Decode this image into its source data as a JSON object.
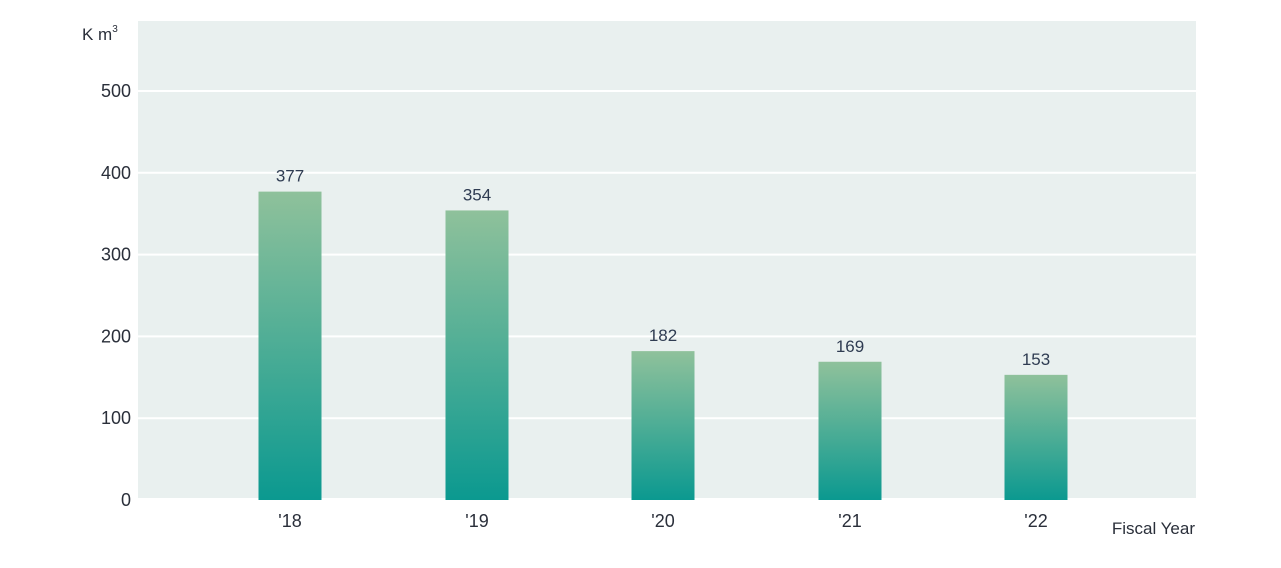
{
  "chart_data": {
    "type": "bar",
    "categories": [
      "'18",
      "'19",
      "'20",
      "'21",
      "'22"
    ],
    "values": [
      377,
      354,
      182,
      169,
      153
    ],
    "ylabel": "K m",
    "ylabel_superscript": "3",
    "xlabel": "Fiscal Year",
    "ylim": [
      0,
      520
    ],
    "yticks": [
      0,
      100,
      200,
      300,
      400,
      500
    ],
    "grid": true,
    "legend": "none"
  },
  "colors": {
    "plot_background": "#e9f0ef",
    "gridline": "#ffffff",
    "bar_top": "#8fc19b",
    "bar_bottom": "#0b9990",
    "text": "#2a2f3a",
    "value_label": "#2f3c52"
  }
}
